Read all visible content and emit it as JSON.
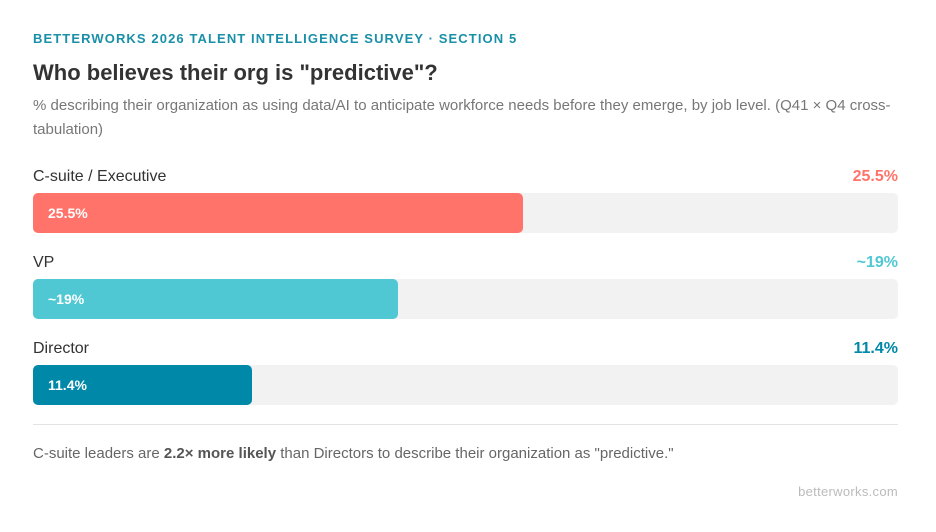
{
  "header": {
    "eyebrow": "BETTERWORKS 2026 TALENT INTELLIGENCE SURVEY · SECTION 5",
    "title": "Who believes their org is \"predictive\"?",
    "subtitle": "% describing their organization as using data/AI to anticipate workforce needs before they emerge, by job level. (Q41 × Q4 cross-tabulation)"
  },
  "chart_data": {
    "type": "bar",
    "orientation": "horizontal",
    "xlim": [
      0,
      45
    ],
    "grid": false,
    "categories": [
      "C-suite / Executive",
      "VP",
      "Director"
    ],
    "values": [
      25.5,
      19,
      11.4
    ],
    "value_labels": [
      "25.5%",
      "~19%",
      "11.4%"
    ],
    "colors": [
      "#ff736a",
      "#4fc8d4",
      "#0088a8"
    ]
  },
  "footer": {
    "takeaway_prefix": "C-suite leaders are ",
    "takeaway_emphasis": "2.2× more likely",
    "takeaway_suffix": " than Directors to describe their organization as \"predictive.\"",
    "source": "betterworks.com"
  }
}
